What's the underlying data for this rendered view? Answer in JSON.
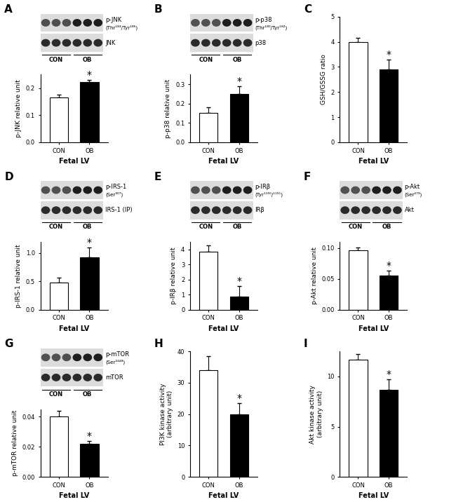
{
  "chart_data": [
    {
      "panel": "A",
      "type": "bar",
      "blots": [
        {
          "label": "p-JNK",
          "sublabel": "(Thr¹⁸³/Tyr¹⁸⁵)"
        },
        {
          "label": "JNK"
        }
      ],
      "blot_groups": [
        "CON",
        "OB"
      ],
      "categories": [
        "CON",
        "OB"
      ],
      "values": [
        0.165,
        0.222
      ],
      "errors": [
        0.01,
        0.007
      ],
      "colors": [
        "#ffffff",
        "#000000"
      ],
      "y_label": "p-JNK relative unit",
      "x_label": "Fetal LV",
      "ylim": [
        0,
        0.25
      ],
      "yticks": [
        {
          "value": 0,
          "label": "0.0"
        },
        0.1,
        0.2
      ],
      "annotations": [
        {
          "category": "OB",
          "text": "*"
        }
      ]
    },
    {
      "panel": "B",
      "type": "bar",
      "blots": [
        {
          "label": "p-p38",
          "sublabel": "(Thr¹⁸⁰/Tyr¹⁸²)"
        },
        {
          "label": "p38"
        }
      ],
      "blot_groups": [
        "CON",
        "OB"
      ],
      "categories": [
        "CON",
        "OB"
      ],
      "values": [
        0.15,
        0.25
      ],
      "errors": [
        0.03,
        0.04
      ],
      "colors": [
        "#ffffff",
        "#000000"
      ],
      "y_label": "p-p38 relative unit",
      "x_label": "Fetal LV",
      "ylim": [
        0,
        0.35
      ],
      "yticks": [
        {
          "value": 0,
          "label": "0.0"
        },
        0.1,
        0.2,
        0.3
      ],
      "annotations": [
        {
          "category": "OB",
          "text": "*"
        }
      ]
    },
    {
      "panel": "C",
      "type": "bar",
      "categories": [
        "CON",
        "OB"
      ],
      "values": [
        4.0,
        2.9
      ],
      "errors": [
        0.15,
        0.4
      ],
      "colors": [
        "#ffffff",
        "#000000"
      ],
      "y_label": "GSH/GSSG ratio",
      "x_label": "Fetal LV",
      "ylim": [
        0,
        5
      ],
      "yticks": [
        0,
        1,
        2,
        3,
        4,
        5
      ],
      "annotations": [
        {
          "category": "OB",
          "text": "*"
        }
      ]
    },
    {
      "panel": "D",
      "type": "bar",
      "blots": [
        {
          "label": "p-IRS-1",
          "sublabel": "(Ser³⁰⁷)"
        },
        {
          "label": "IRS-1 (IP)"
        }
      ],
      "blot_groups": [
        "CON",
        "OB"
      ],
      "categories": [
        "CON",
        "OB"
      ],
      "values": [
        0.48,
        0.92
      ],
      "errors": [
        0.09,
        0.18
      ],
      "colors": [
        "#ffffff",
        "#000000"
      ],
      "y_label": "p-IRS-1 relative unit",
      "x_label": "Fetal LV",
      "ylim": [
        0,
        1.2
      ],
      "yticks": [
        {
          "value": 0,
          "label": "0.0"
        },
        0.5,
        {
          "value": 1,
          "label": "1.0"
        }
      ],
      "annotations": [
        {
          "category": "OB",
          "text": "*"
        }
      ]
    },
    {
      "panel": "E",
      "type": "bar",
      "blots": [
        {
          "label": "p-IRβ",
          "sublabel": "(Tyr¹¹⁵⁰/¹¹⁵¹)"
        },
        {
          "label": "IRβ"
        }
      ],
      "blot_groups": [
        "CON",
        "OB"
      ],
      "categories": [
        "CON",
        "OB"
      ],
      "values": [
        3.85,
        0.85
      ],
      "errors": [
        0.4,
        0.7
      ],
      "colors": [
        "#ffffff",
        "#000000"
      ],
      "y_label": "p-IRβ relative unit",
      "x_label": "Fetal LV",
      "ylim": [
        0,
        4.5
      ],
      "yticks": [
        0,
        1,
        2,
        3,
        4
      ],
      "annotations": [
        {
          "category": "OB",
          "text": "*"
        }
      ]
    },
    {
      "panel": "F",
      "type": "bar",
      "blots": [
        {
          "label": "p-Akt",
          "sublabel": "(Ser⁴⁷³)"
        },
        {
          "label": "Akt"
        }
      ],
      "blot_groups": [
        "CON",
        "OB"
      ],
      "categories": [
        "CON",
        "OB"
      ],
      "values": [
        0.096,
        0.055
      ],
      "errors": [
        0.005,
        0.008
      ],
      "colors": [
        "#ffffff",
        "#000000"
      ],
      "y_label": "p-Akt relative unit",
      "x_label": "Fetal LV",
      "ylim": [
        0,
        0.11
      ],
      "yticks": [
        {
          "value": 0,
          "label": "0.00"
        },
        0.05,
        {
          "value": 0.1,
          "label": "0.10"
        }
      ],
      "annotations": [
        {
          "category": "OB",
          "text": "*"
        }
      ]
    },
    {
      "panel": "G",
      "type": "bar",
      "blots": [
        {
          "label": "p-mTOR",
          "sublabel": "(Ser²⁴⁴⁸)"
        },
        {
          "label": "mTOR"
        }
      ],
      "blot_groups": [
        "CON",
        "OB"
      ],
      "categories": [
        "CON",
        "OB"
      ],
      "values": [
        0.04,
        0.022
      ],
      "errors": [
        0.004,
        0.002
      ],
      "colors": [
        "#ffffff",
        "#000000"
      ],
      "y_label": "p-mTOR relative unit",
      "x_label": "Fetal LV",
      "ylim": [
        0,
        0.045
      ],
      "yticks": [
        {
          "value": 0,
          "label": "0.00"
        },
        0.02,
        0.04
      ],
      "annotations": [
        {
          "category": "OB",
          "text": "*"
        }
      ]
    },
    {
      "panel": "H",
      "type": "bar",
      "categories": [
        "CON",
        "OB"
      ],
      "values": [
        34,
        20
      ],
      "errors": [
        4.5,
        3.5
      ],
      "colors": [
        "#ffffff",
        "#000000"
      ],
      "y_label": "PI3K kinase activity\n(arbitrary unit)",
      "x_label": "Fetal LV",
      "ylim": [
        0,
        40
      ],
      "yticks": [
        0,
        10,
        20,
        30,
        40
      ],
      "annotations": [
        {
          "category": "OB",
          "text": "*"
        }
      ]
    },
    {
      "panel": "I",
      "type": "bar",
      "categories": [
        "CON",
        "OB"
      ],
      "values": [
        11.7,
        8.7
      ],
      "errors": [
        0.5,
        1.0
      ],
      "colors": [
        "#ffffff",
        "#000000"
      ],
      "y_label": "Akt kinase activity\n(arbitrary unit)",
      "x_label": "Fetal LV",
      "ylim": [
        0,
        12.5
      ],
      "yticks": [
        0,
        5,
        10
      ],
      "annotations": [
        {
          "category": "OB",
          "text": "*"
        }
      ]
    }
  ]
}
